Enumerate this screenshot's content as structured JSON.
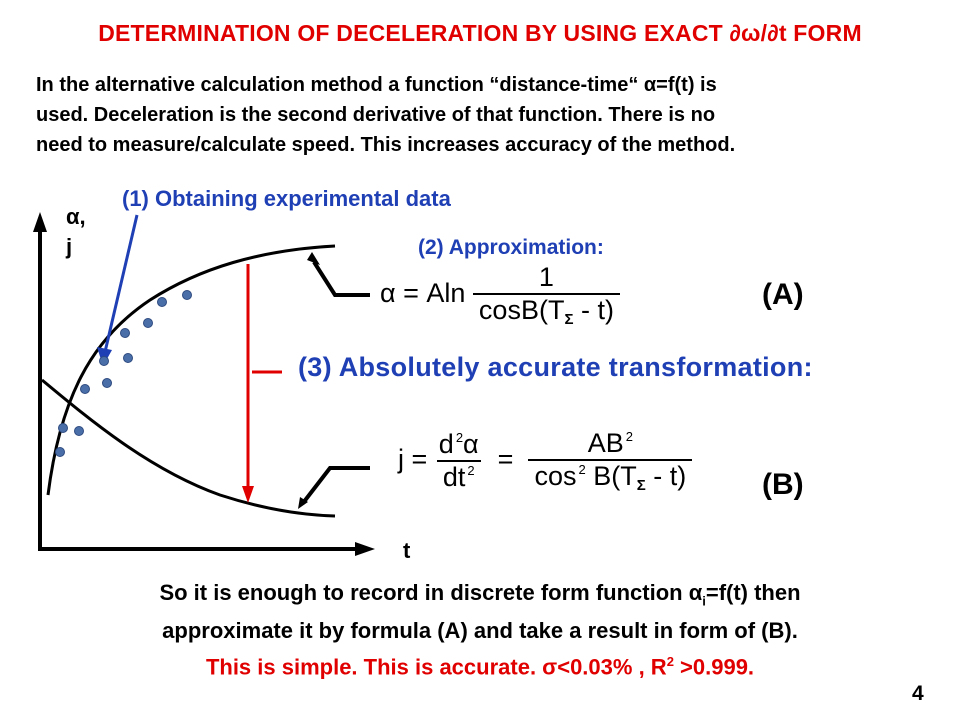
{
  "title": "DETERMINATION OF DECELERATION BY USING EXACT ∂ω/∂t  FORM",
  "intro": {
    "line1": "In the alternative calculation method a function “distance-time“ α=f(t) is",
    "line2": "used. Deceleration is the second derivative of that function. There is no",
    "line3": "need to measure/calculate speed. This increases accuracy of the method."
  },
  "diagram": {
    "step1": "(1) Obtaining experimental data",
    "step2": "(2) Approximation:",
    "step3": "(3) Absolutely accurate transformation:",
    "y_axis_label_1": "α,",
    "y_axis_label_2": "j",
    "x_axis_label": "t",
    "tag_a": "(A)",
    "tag_b": "(B)",
    "colors": {
      "blue": "#1f3fb5",
      "red": "#e00000",
      "dot": "#4a6fa8"
    },
    "formula_a": {
      "lhs": "α = Aln",
      "numerator": "1",
      "denominator_main": "cosB(T",
      "denominator_sub": "Σ",
      "denominator_end": " - t)"
    },
    "formula_b": {
      "lhs": "j = ",
      "mid_num": "d",
      "mid_num_sup": "2",
      "mid_num_end": "α",
      "mid_den": "dt",
      "mid_den_sup": "2",
      "eq": " = ",
      "rhs_num": "AB",
      "rhs_num_sup": "2",
      "rhs_den": "cos",
      "rhs_den_sup": "2",
      "rhs_den_mid": " B(T",
      "rhs_den_sub": "Σ",
      "rhs_den_end": " - t)"
    }
  },
  "bottom": {
    "line1_a": "So it is enough to record in discrete form function α",
    "line1_sub": "i",
    "line1_b": "=f(t)  then",
    "line2": "approximate it by formula (A) and take a result in form of (B).",
    "line3_a": "This is simple. This is accurate. σ<0.03% , R",
    "line3_sup": "2",
    "line3_b": " >0.999."
  },
  "page_number": "4"
}
